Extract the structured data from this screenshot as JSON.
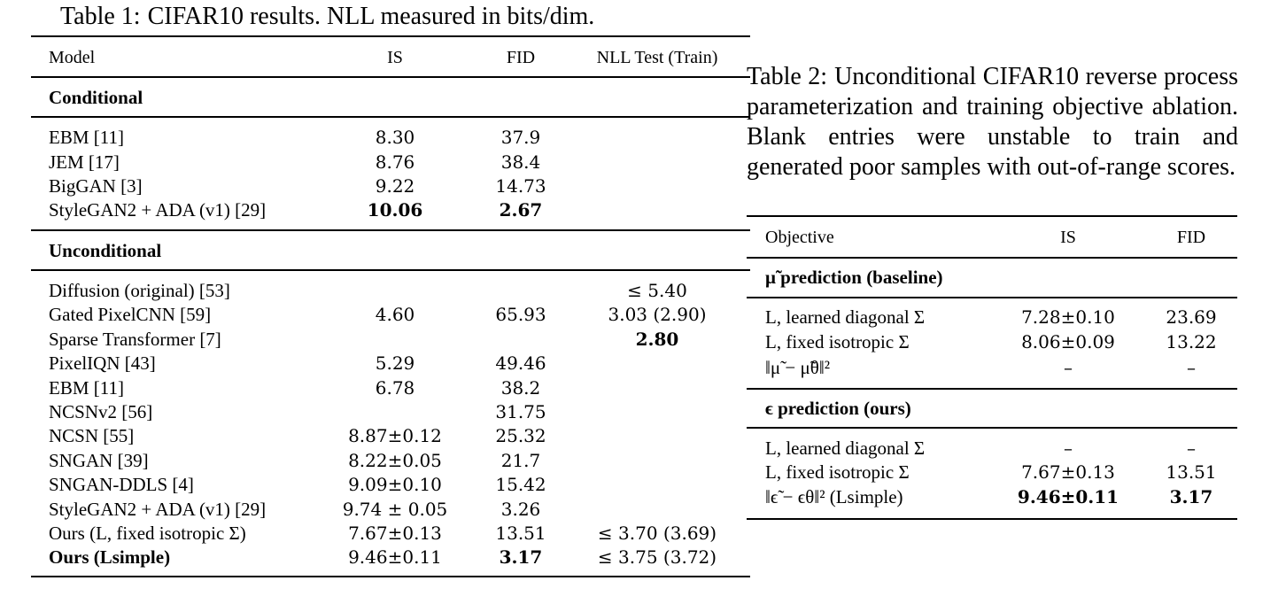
{
  "table1": {
    "caption_label": "Table 1:",
    "caption_text": "CIFAR10 results. NLL measured in bits/dim.",
    "columns": [
      "Model",
      "IS",
      "FID",
      "NLL Test (Train)"
    ],
    "sections": [
      {
        "title": "Conditional",
        "rows": [
          {
            "model": "EBM [11]",
            "is": "8.30",
            "fid": "37.9",
            "nll": ""
          },
          {
            "model": "JEM [17]",
            "is": "8.76",
            "fid": "38.4",
            "nll": ""
          },
          {
            "model": "BigGAN [3]",
            "is": "9.22",
            "fid": "14.73",
            "nll": ""
          },
          {
            "model": "StyleGAN2 + ADA (v1) [29]",
            "is": "10.06",
            "fid": "2.67",
            "nll": ""
          }
        ]
      },
      {
        "title": "Unconditional",
        "rows": [
          {
            "model": "Diffusion (original) [53]",
            "is": "",
            "fid": "",
            "nll": "≤ 5.40"
          },
          {
            "model": "Gated PixelCNN [59]",
            "is": "4.60",
            "fid": "65.93",
            "nll": "3.03 (2.90)"
          },
          {
            "model": "Sparse Transformer [7]",
            "is": "",
            "fid": "",
            "nll": "2.80"
          },
          {
            "model": "PixelIQN [43]",
            "is": "5.29",
            "fid": "49.46",
            "nll": ""
          },
          {
            "model": "EBM [11]",
            "is": "6.78",
            "fid": "38.2",
            "nll": ""
          },
          {
            "model": "NCSNv2 [56]",
            "is": "",
            "fid": "31.75",
            "nll": ""
          },
          {
            "model": "NCSN [55]",
            "is": "8.87±0.12",
            "fid": "25.32",
            "nll": ""
          },
          {
            "model": "SNGAN [39]",
            "is": "8.22±0.05",
            "fid": "21.7",
            "nll": ""
          },
          {
            "model": "SNGAN-DDLS [4]",
            "is": "9.09±0.10",
            "fid": "15.42",
            "nll": ""
          },
          {
            "model": "StyleGAN2 + ADA (v1) [29]",
            "is": "9.74 ± 0.05",
            "fid": "3.26",
            "nll": ""
          },
          {
            "model": "Ours (L, fixed isotropic Σ)",
            "is": "7.67±0.13",
            "fid": "13.51",
            "nll": "≤ 3.70 (3.69)"
          },
          {
            "model": "Ours (Lsimple)",
            "is": "9.46±0.11",
            "fid": "3.17",
            "nll": "≤ 3.75 (3.72)"
          }
        ]
      }
    ]
  },
  "table2": {
    "caption_label": "Table 2:",
    "caption_text": "Unconditional CIFAR10 reverse process parameterization and training objective ablation. Blank entries were unstable to train and generated poor samples with out-of-range scores.",
    "columns": [
      "Objective",
      "IS",
      "FID"
    ],
    "sections": [
      {
        "title": "μ̃ prediction (baseline)",
        "rows": [
          {
            "objective": "L, learned diagonal Σ",
            "is": "7.28±0.10",
            "fid": "23.69"
          },
          {
            "objective": "L, fixed isotropic Σ",
            "is": "8.06±0.09",
            "fid": "13.22"
          },
          {
            "objective": "‖μ̃ − μ̃θ‖²",
            "is": "–",
            "fid": "–"
          }
        ]
      },
      {
        "title": "ϵ prediction (ours)",
        "rows": [
          {
            "objective": "L, learned diagonal Σ",
            "is": "–",
            "fid": "–"
          },
          {
            "objective": "L, fixed isotropic Σ",
            "is": "7.67±0.13",
            "fid": "13.51"
          },
          {
            "objective": "‖ϵ̃ − ϵθ‖² (Lsimple)",
            "is": "9.46±0.11",
            "fid": "3.17"
          }
        ]
      }
    ]
  }
}
